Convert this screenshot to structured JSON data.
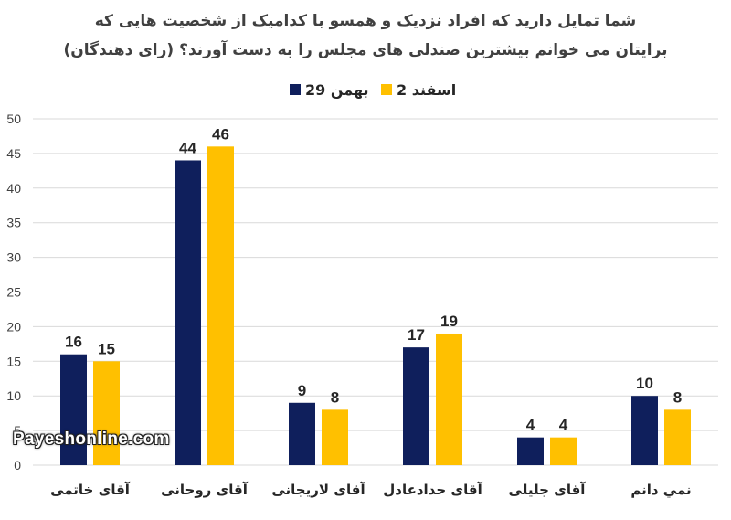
{
  "chart_data": {
    "type": "bar",
    "title_lines": [
      "شما تمایل دارید که افراد نزدیک و همسو با کدامیک از شخصیت هایی که",
      "برایتان می خوانم بیشترین صندلی های مجلس را به دست آورند؟ (رای دهندگان)"
    ],
    "categories": [
      "آقای خاتمی",
      "آقای روحانی",
      "آقای لاریجانی",
      "آقای حدادعادل",
      "آقای جلیلی",
      "نمي دانم"
    ],
    "series": [
      {
        "name": "29 بهمن",
        "color": "#0f1f5c",
        "values": [
          16,
          44,
          9,
          17,
          4,
          10
        ]
      },
      {
        "name": "2 اسفند",
        "color": "#ffc000",
        "values": [
          15,
          46,
          8,
          19,
          4,
          8
        ]
      }
    ],
    "ylim": [
      0,
      50
    ],
    "yticks": [
      "0",
      "5",
      "10",
      "15",
      "20",
      "25",
      "30",
      "35",
      "40",
      "45",
      "50"
    ],
    "grid": true,
    "legend_position": "top-center",
    "xlabel": "",
    "ylabel": ""
  },
  "watermark": "Payeshonline.com"
}
